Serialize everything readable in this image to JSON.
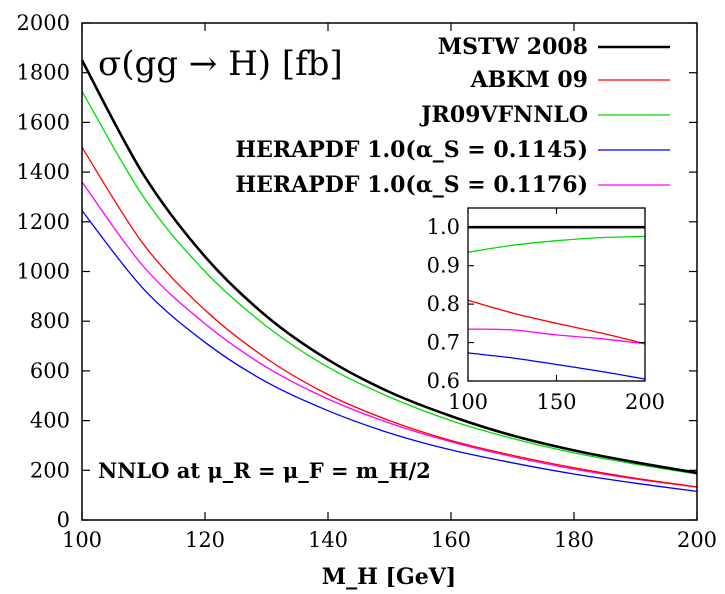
{
  "chart_data": {
    "type": "line",
    "title": "σ(gg → H) [fb]",
    "xlabel": "M_H [GeV]",
    "ylabel": "",
    "xlim": [
      100,
      200
    ],
    "ylim": [
      0,
      2000
    ],
    "xticks": [
      100,
      120,
      140,
      160,
      180,
      200
    ],
    "yticks": [
      0,
      200,
      400,
      600,
      800,
      1000,
      1200,
      1400,
      1600,
      1800,
      2000
    ],
    "grid": false,
    "legend_position": "top-right",
    "annotation": "NNLO at μ_R = μ_F = m_H/2",
    "x": [
      100,
      110,
      120,
      130,
      140,
      150,
      160,
      170,
      180,
      190,
      200
    ],
    "series": [
      {
        "name": "MSTW 2008",
        "color": "#000000",
        "values": [
          1850,
          1390,
          1060,
          820,
          645,
          515,
          418,
          340,
          280,
          232,
          190
        ]
      },
      {
        "name": "ABKM 09",
        "color": "#ff0000",
        "values": [
          1500,
          1110,
          845,
          650,
          505,
          400,
          320,
          260,
          210,
          168,
          133
        ]
      },
      {
        "name": "JR09VFNNLO",
        "color": "#00dd00",
        "values": [
          1725,
          1300,
          1000,
          780,
          615,
          495,
          400,
          328,
          270,
          225,
          185
        ]
      },
      {
        "name": "HERAPDF 1.0(α_S = 0.1145)",
        "color": "#0000ff",
        "values": [
          1245,
          930,
          715,
          555,
          440,
          350,
          282,
          230,
          185,
          148,
          115
        ]
      },
      {
        "name": "HERAPDF 1.0(α_S = 0.1176)",
        "color": "#ff00ff",
        "values": [
          1360,
          1020,
          790,
          615,
          487,
          390,
          315,
          255,
          205,
          165,
          132
        ]
      }
    ],
    "inset": {
      "type": "line",
      "xlim": [
        100,
        200
      ],
      "ylim": [
        0.6,
        1.05
      ],
      "xticks": [
        100,
        150,
        200
      ],
      "yticks": [
        0.6,
        0.7,
        0.8,
        0.9,
        1.0
      ],
      "x": [
        100,
        125,
        150,
        175,
        200
      ],
      "series": [
        {
          "name": "MSTW 2008",
          "color": "#000000",
          "values": [
            1.0,
            1.0,
            1.0,
            1.0,
            1.0
          ]
        },
        {
          "name": "JR09VFNNLO",
          "color": "#00dd00",
          "values": [
            0.935,
            0.953,
            0.965,
            0.973,
            0.976
          ]
        },
        {
          "name": "ABKM 09",
          "color": "#ff0000",
          "values": [
            0.81,
            0.777,
            0.75,
            0.725,
            0.697
          ]
        },
        {
          "name": "HERAPDF 1.0(α_S = 0.1176)",
          "color": "#ff00ff",
          "values": [
            0.735,
            0.733,
            0.72,
            0.71,
            0.697
          ]
        },
        {
          "name": "HERAPDF 1.0(α_S = 0.1145)",
          "color": "#0000ff",
          "values": [
            0.673,
            0.66,
            0.643,
            0.625,
            0.605
          ]
        }
      ]
    }
  }
}
